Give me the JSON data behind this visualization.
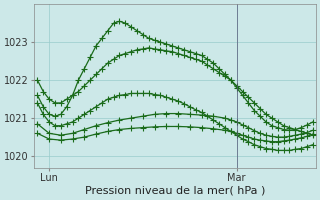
{
  "xlabel": "Pression niveau de la mer( hPa )",
  "bg_color": "#cce8e8",
  "grid_color": "#99cccc",
  "line_color": "#1a6b1a",
  "ylim": [
    1019.7,
    1024.0
  ],
  "xlim": [
    -0.5,
    47.5
  ],
  "series": [
    {
      "x": [
        0,
        1,
        2,
        3,
        4,
        5,
        6,
        7,
        8,
        9,
        10,
        11,
        12,
        13,
        14,
        15,
        16,
        17,
        18,
        19,
        20,
        21,
        22,
        23,
        24,
        25,
        26,
        27,
        28,
        29,
        30,
        31,
        32,
        33,
        34,
        35,
        36,
        37,
        38,
        39,
        40,
        41,
        42,
        43,
        44,
        45,
        46,
        47
      ],
      "y": [
        1022.0,
        1021.7,
        1021.5,
        1021.4,
        1021.4,
        1021.5,
        1021.6,
        1021.7,
        1021.85,
        1022.0,
        1022.15,
        1022.3,
        1022.45,
        1022.55,
        1022.65,
        1022.7,
        1022.75,
        1022.8,
        1022.82,
        1022.85,
        1022.82,
        1022.8,
        1022.77,
        1022.75,
        1022.7,
        1022.65,
        1022.6,
        1022.55,
        1022.5,
        1022.4,
        1022.3,
        1022.2,
        1022.1,
        1022.0,
        1021.85,
        1021.7,
        1021.55,
        1021.4,
        1021.25,
        1021.1,
        1021.0,
        1020.9,
        1020.8,
        1020.75,
        1020.7,
        1020.65,
        1020.6,
        1020.55
      ]
    },
    {
      "x": [
        0,
        1,
        2,
        3,
        4,
        5,
        6,
        7,
        8,
        9,
        10,
        11,
        12,
        13,
        14,
        15,
        16,
        17,
        18,
        19,
        20,
        21,
        22,
        23,
        24,
        25,
        26,
        27,
        28,
        29,
        30,
        31,
        32,
        33,
        34,
        35,
        36,
        37,
        38,
        39,
        40,
        41,
        42,
        43,
        44,
        45,
        46,
        47
      ],
      "y": [
        1021.4,
        1021.1,
        1020.9,
        1020.8,
        1020.8,
        1020.85,
        1020.9,
        1021.0,
        1021.1,
        1021.2,
        1021.3,
        1021.4,
        1021.5,
        1021.55,
        1021.6,
        1021.62,
        1021.65,
        1021.65,
        1021.65,
        1021.65,
        1021.62,
        1021.6,
        1021.55,
        1021.5,
        1021.45,
        1021.38,
        1021.3,
        1021.22,
        1021.15,
        1021.05,
        1020.95,
        1020.85,
        1020.75,
        1020.65,
        1020.55,
        1020.45,
        1020.38,
        1020.3,
        1020.25,
        1020.2,
        1020.18,
        1020.15,
        1020.15,
        1020.15,
        1020.18,
        1020.2,
        1020.25,
        1020.3
      ]
    },
    {
      "x": [
        0,
        1,
        2,
        3,
        4,
        5,
        6,
        7,
        8,
        9,
        10,
        11,
        12,
        13,
        14,
        15,
        16,
        17,
        18,
        19,
        20,
        21,
        22,
        23,
        24,
        25,
        26,
        27,
        28,
        29,
        30,
        31,
        32,
        33,
        34,
        35,
        36,
        37,
        38,
        39,
        40,
        41,
        42,
        43,
        44,
        45,
        46,
        47
      ],
      "y": [
        1021.6,
        1021.3,
        1021.1,
        1021.05,
        1021.1,
        1021.3,
        1021.6,
        1022.0,
        1022.3,
        1022.6,
        1022.9,
        1023.1,
        1023.3,
        1023.5,
        1023.55,
        1023.5,
        1023.4,
        1023.3,
        1023.2,
        1023.1,
        1023.05,
        1023.0,
        1022.95,
        1022.9,
        1022.85,
        1022.8,
        1022.75,
        1022.7,
        1022.65,
        1022.55,
        1022.45,
        1022.3,
        1022.15,
        1022.0,
        1021.8,
        1021.6,
        1021.4,
        1021.2,
        1021.05,
        1020.9,
        1020.8,
        1020.75,
        1020.7,
        1020.68,
        1020.7,
        1020.75,
        1020.82,
        1020.9
      ]
    },
    {
      "x": [
        0,
        2,
        4,
        6,
        8,
        10,
        12,
        14,
        16,
        18,
        20,
        22,
        24,
        26,
        28,
        30,
        32,
        33,
        34,
        35,
        36,
        37,
        38,
        39,
        40,
        41,
        42,
        43,
        44,
        45,
        46,
        47
      ],
      "y": [
        1020.85,
        1020.6,
        1020.55,
        1020.6,
        1020.7,
        1020.8,
        1020.88,
        1020.95,
        1021.0,
        1021.05,
        1021.1,
        1021.12,
        1021.12,
        1021.1,
        1021.08,
        1021.05,
        1021.0,
        1020.95,
        1020.9,
        1020.82,
        1020.75,
        1020.67,
        1020.6,
        1020.55,
        1020.52,
        1020.5,
        1020.5,
        1020.52,
        1020.55,
        1020.58,
        1020.62,
        1020.68
      ]
    },
    {
      "x": [
        0,
        2,
        4,
        6,
        8,
        10,
        12,
        14,
        16,
        18,
        20,
        22,
        24,
        26,
        28,
        30,
        32,
        33,
        34,
        35,
        36,
        37,
        38,
        39,
        40,
        41,
        42,
        43,
        44,
        45,
        46,
        47
      ],
      "y": [
        1020.6,
        1020.45,
        1020.42,
        1020.45,
        1020.5,
        1020.58,
        1020.65,
        1020.7,
        1020.73,
        1020.75,
        1020.77,
        1020.78,
        1020.78,
        1020.77,
        1020.75,
        1020.72,
        1020.68,
        1020.65,
        1020.6,
        1020.55,
        1020.5,
        1020.45,
        1020.42,
        1020.4,
        1020.38,
        1020.38,
        1020.4,
        1020.42,
        1020.45,
        1020.48,
        1020.52,
        1020.58
      ]
    }
  ],
  "yticks": [
    1020,
    1021,
    1022,
    1023
  ],
  "xtick_labels": [
    "Lun",
    "Mar"
  ],
  "xtick_positions": [
    2,
    34
  ],
  "vline_x": 34,
  "marker": "+",
  "markersize": 4,
  "linewidth": 0.9,
  "xlabel_fontsize": 8,
  "ytick_fontsize": 7,
  "xtick_fontsize": 7
}
